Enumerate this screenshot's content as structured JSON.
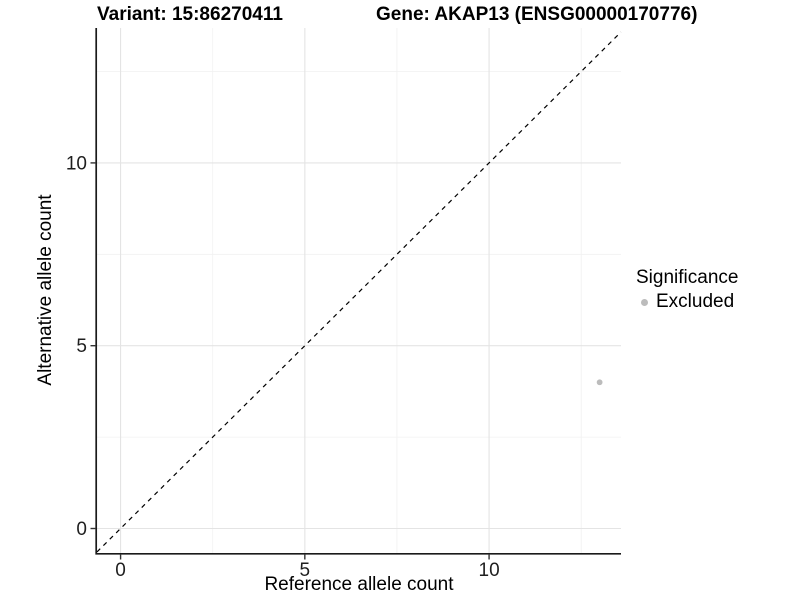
{
  "title": {
    "variant": "Variant: 15:86270411",
    "gene": "Gene: AKAP13 (ENSG00000170776)"
  },
  "chart_data": {
    "type": "scatter",
    "title": "Variant: 15:86270411    Gene: AKAP13 (ENSG00000170776)",
    "xlabel": "Reference allele count",
    "ylabel": "Alternative allele count",
    "xlim": [
      -0.64,
      13.58
    ],
    "ylim": [
      -0.67,
      13.69
    ],
    "x_ticks": [
      {
        "v": 0,
        "label": "0"
      },
      {
        "v": 5,
        "label": "5"
      },
      {
        "v": 10,
        "label": "10"
      }
    ],
    "y_ticks": [
      {
        "v": 0,
        "label": "0"
      },
      {
        "v": 5,
        "label": "5"
      },
      {
        "v": 10,
        "label": "10"
      }
    ],
    "x_minor_ticks": [
      2.5,
      7.5,
      12.5
    ],
    "y_minor_ticks": [
      2.5,
      7.5,
      12.5
    ],
    "grid": "major and minor gridlines, white background, left/bottom black axis lines only",
    "identity_line": {
      "slope": 1,
      "intercept": 0,
      "linetype": "dashed",
      "color": "#000000"
    },
    "series": [
      {
        "name": "Excluded",
        "color": "#bcbcbc",
        "points": [
          {
            "x": 13,
            "y": 4
          }
        ]
      }
    ],
    "legend": {
      "title": "Significance",
      "position": "right",
      "items": [
        {
          "label": "Excluded",
          "color": "#bcbcbc"
        }
      ]
    },
    "colors": {
      "background": "#ffffff",
      "grid_major": "#e4e4e4",
      "grid_minor": "#f1f1f1",
      "axis_line": "#1a1a1a",
      "tick_mark": "#333333",
      "tick_label": "#1f1f1f",
      "point": "#bcbcbc"
    }
  }
}
